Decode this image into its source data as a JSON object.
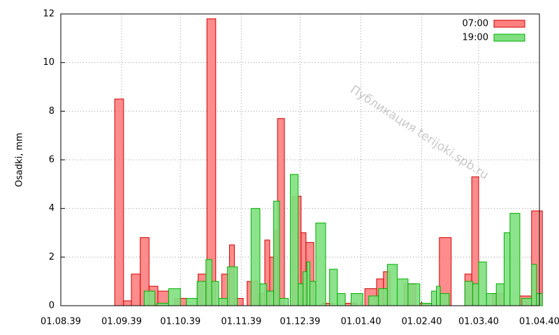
{
  "chart_data": {
    "type": "bar",
    "ylabel": "Osadki, mm",
    "annotation": "Публикация terijoki.spb.ru",
    "xlim": [
      "01.08.39",
      "01.04.40"
    ],
    "xticks": [
      "01.08.39",
      "01.09.39",
      "01.10.39",
      "01.11.39",
      "01.12.39",
      "01.01.40",
      "01.02.40",
      "01.03.40",
      "01.04.40"
    ],
    "ylim": [
      0,
      12
    ],
    "yticks": [
      0,
      2,
      4,
      6,
      8,
      10,
      12
    ],
    "grid": true,
    "legend": "top right",
    "series": [
      {
        "name": "07:00",
        "color": "#ff8080",
        "x": [
          "31.08.39",
          "04.09.39",
          "08.09.39",
          "13.09.39",
          "17.09.39",
          "22.09.39",
          "01.10.39",
          "13.10.39",
          "16.10.39",
          "25.10.39",
          "27.10.39",
          "30.10.39",
          "07.11.39",
          "12.11.39",
          "14.11.39",
          "17.11.39",
          "19.11.39",
          "20.11.39",
          "30.11.39",
          "03.12.39",
          "05.12.39",
          "15.12.39",
          "27.12.39",
          "06.01.40",
          "12.01.40",
          "13.01.40",
          "26.01.40",
          "03.02.40",
          "13.02.40",
          "26.02.40",
          "27.02.40",
          "11.03.40",
          "25.03.40",
          "31.03.40"
        ],
        "values": [
          8.5,
          0.2,
          1.3,
          2.8,
          0.8,
          0.6,
          0.3,
          1.3,
          11.8,
          1.3,
          2.5,
          0.3,
          1.0,
          0.5,
          2.7,
          2.0,
          3.1,
          7.7,
          4.5,
          3.0,
          2.6,
          0.1,
          0.1,
          0.7,
          1.1,
          1.4,
          0.9,
          0.1,
          2.8,
          1.3,
          5.3,
          0.5,
          0.4,
          3.9
        ]
      },
      {
        "name": "19:00",
        "color": "#80e080",
        "x": [
          "15.09.39",
          "22.09.39",
          "28.09.39",
          "07.10.39",
          "12.10.39",
          "16.10.39",
          "18.10.39",
          "23.10.39",
          "27.10.39",
          "09.11.39",
          "12.11.39",
          "16.11.39",
          "19.11.39",
          "22.11.39",
          "29.11.39",
          "01.12.39",
          "04.12.39",
          "05.12.39",
          "07.12.39",
          "11.12.39",
          "19.12.39",
          "21.12.39",
          "30.12.39",
          "08.01.40",
          "12.01.40",
          "17.01.40",
          "22.01.40",
          "28.01.40",
          "04.02.40",
          "08.02.40",
          "09.02.40",
          "12.02.40",
          "26.02.40",
          "28.02.40",
          "03.03.40",
          "07.03.40",
          "13.03.40",
          "15.03.40",
          "19.03.40",
          "26.03.40",
          "30.03.40",
          "31.03.40"
        ],
        "values": [
          0.6,
          0.1,
          0.7,
          0.3,
          1.0,
          1.9,
          1.0,
          0.3,
          1.6,
          4.0,
          0.9,
          0.6,
          4.3,
          0.3,
          5.4,
          0.9,
          1.4,
          1.8,
          1.0,
          3.4,
          1.5,
          0.5,
          0.5,
          0.4,
          0.7,
          1.7,
          1.1,
          0.9,
          0.1,
          0.6,
          0.8,
          0.5,
          1.0,
          0.9,
          1.8,
          0.5,
          0.9,
          3.0,
          3.8,
          0.3,
          1.7,
          0.5
        ]
      }
    ]
  }
}
